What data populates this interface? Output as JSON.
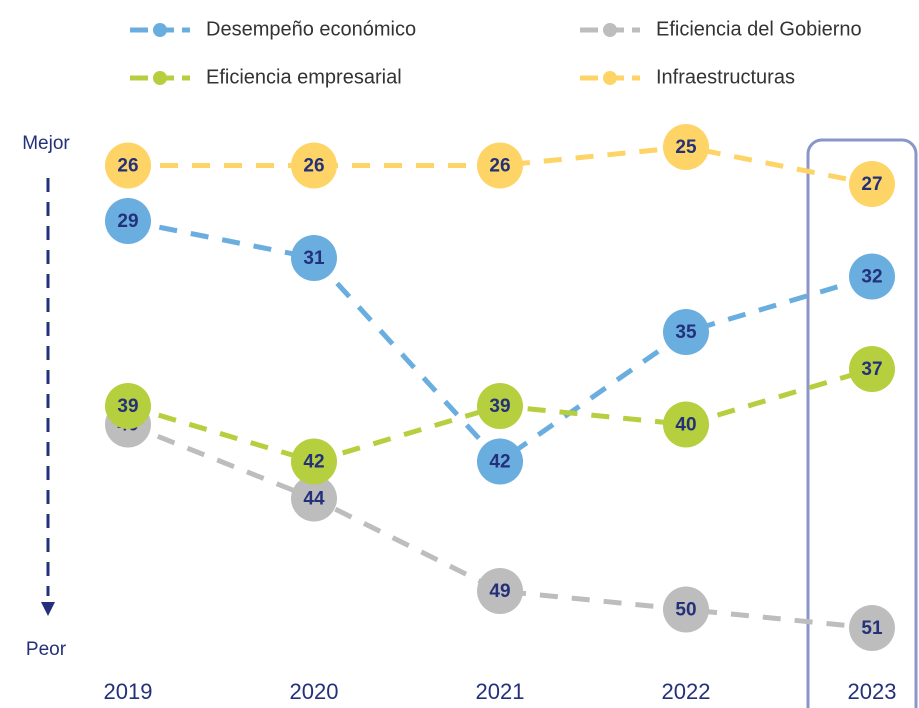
{
  "chart_data": {
    "type": "line",
    "categories": [
      "2019",
      "2020",
      "2021",
      "2022",
      "2023"
    ],
    "series": [
      {
        "name": "Desempeño económico",
        "color": "#6aaee0",
        "values": [
          29,
          31,
          42,
          35,
          32
        ]
      },
      {
        "name": "Eficiencia del Gobierno",
        "color": "#bdbdbd",
        "values": [
          40,
          44,
          49,
          50,
          51
        ]
      },
      {
        "name": "Eficiencia empresarial",
        "color": "#b5cf3e",
        "values": [
          39,
          42,
          39,
          40,
          37
        ]
      },
      {
        "name": "Infraestructuras",
        "color": "#fdd465",
        "values": [
          26,
          26,
          26,
          25,
          27
        ]
      }
    ],
    "ylim": [
      25,
      51
    ],
    "y_inverted": true,
    "y_top_label": "Mejor",
    "y_bottom_label": "Peor",
    "legend": "top"
  }
}
